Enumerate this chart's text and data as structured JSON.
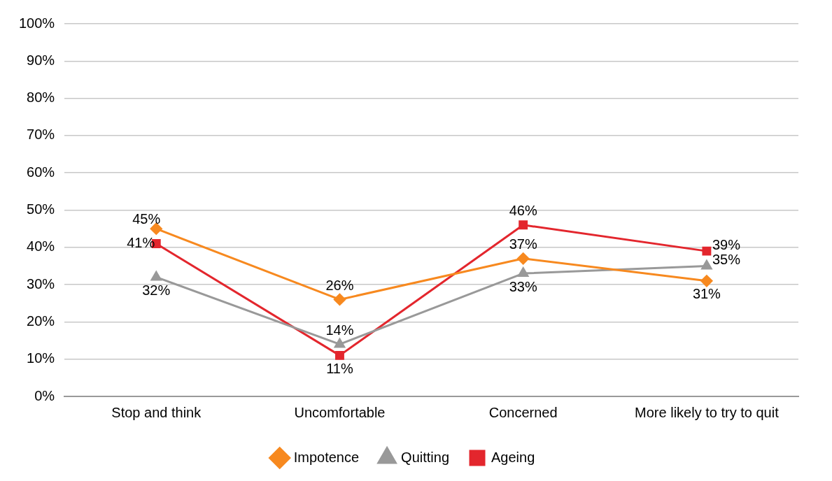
{
  "chart_data": {
    "type": "line",
    "categories": [
      "Stop and think",
      "Uncomfortable",
      "Concerned",
      "More likely to try to quit"
    ],
    "series": [
      {
        "name": "Impotence",
        "color": "#f7891f",
        "marker": "diamond",
        "values": [
          45,
          26,
          37,
          31
        ],
        "value_labels": [
          "45%",
          "26%",
          "37%",
          "31%"
        ]
      },
      {
        "name": "Quitting",
        "color": "#999999",
        "marker": "triangle",
        "values": [
          32,
          14,
          33,
          35
        ],
        "value_labels": [
          "32%",
          "14%",
          "33%",
          "35%"
        ]
      },
      {
        "name": "Ageing",
        "color": "#e3262d",
        "marker": "square",
        "values": [
          41,
          11,
          46,
          39
        ],
        "value_labels": [
          "41%",
          "11%",
          "46%",
          "39%"
        ]
      }
    ],
    "ylim": [
      0,
      100
    ],
    "yticks": [
      {
        "value": 0,
        "label": "0%"
      },
      {
        "value": 10,
        "label": "10%"
      },
      {
        "value": 20,
        "label": "20%"
      },
      {
        "value": 30,
        "label": "30%"
      },
      {
        "value": 40,
        "label": "40%"
      },
      {
        "value": 50,
        "label": "50%"
      },
      {
        "value": 60,
        "label": "60%"
      },
      {
        "value": 70,
        "label": "70%"
      },
      {
        "value": 80,
        "label": "80%"
      },
      {
        "value": 90,
        "label": "90%"
      },
      {
        "value": 100,
        "label": "100%"
      }
    ],
    "grid": "y",
    "legend": "bottom",
    "line_style": "solid"
  }
}
